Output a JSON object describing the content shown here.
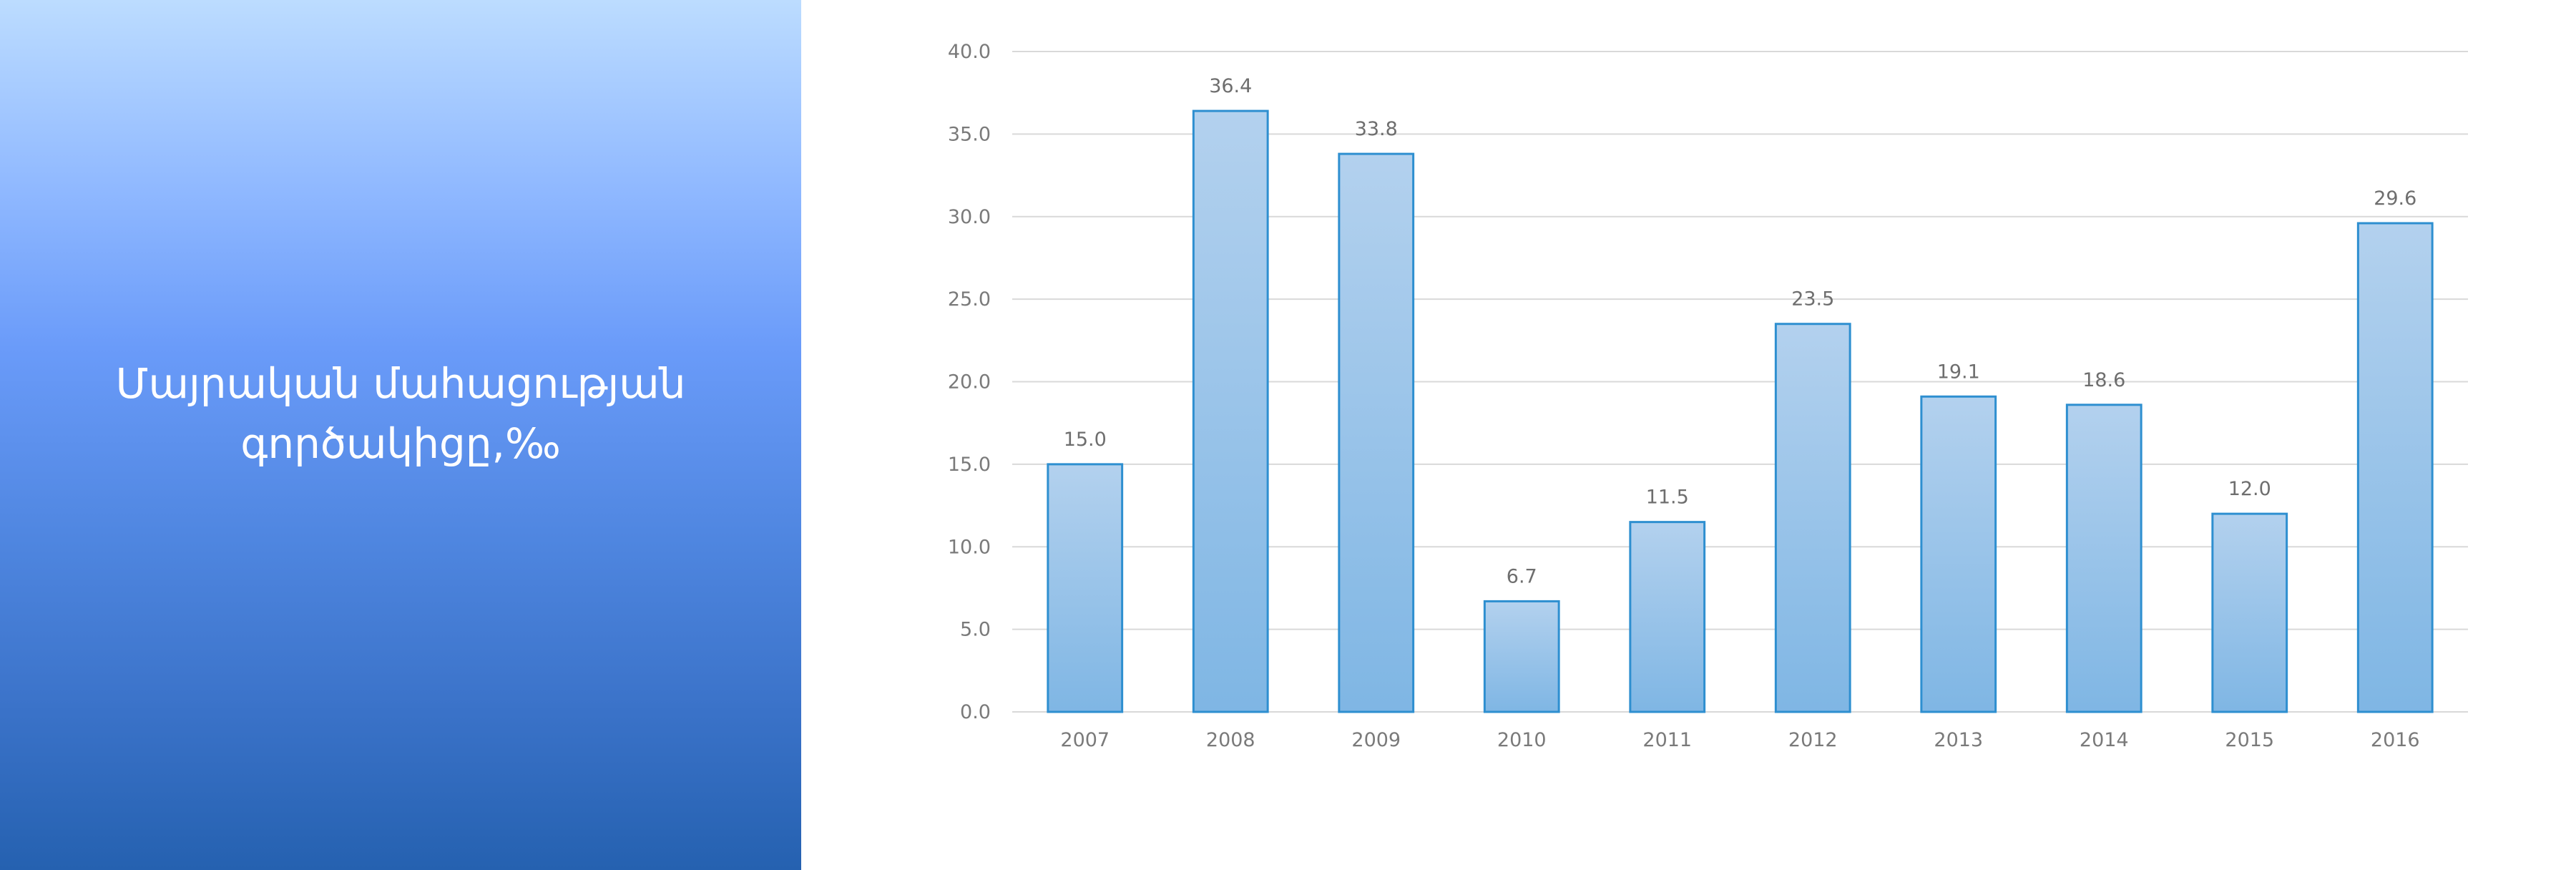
{
  "panel": {
    "title": "Մայրական մահացության գործակիցը,‰"
  },
  "colors": {
    "bar_top": "#b3d1ee",
    "bar_bottom": "#7fb6e4",
    "bar_border": "#2e8fd0",
    "grid": "#d9d9d9",
    "panel_top": "#bcdcff",
    "panel_bottom": "#2561b0"
  },
  "chart_data": {
    "type": "bar",
    "categories": [
      "2007",
      "2008",
      "2009",
      "2010",
      "2011",
      "2012",
      "2013",
      "2014",
      "2015",
      "2016"
    ],
    "values": [
      15.0,
      36.4,
      33.8,
      6.7,
      11.5,
      23.5,
      19.1,
      18.6,
      12.0,
      29.6
    ],
    "value_labels": [
      "15.0",
      "36.4",
      "33.8",
      "6.7",
      "11.5",
      "23.5",
      "19.1",
      "18.6",
      "12.0",
      "29.6"
    ],
    "ylim": [
      0,
      40
    ],
    "y_ticks": [
      "0.0",
      "5.0",
      "10.0",
      "15.0",
      "20.0",
      "25.0",
      "30.0",
      "35.0",
      "40.0"
    ],
    "grid": true,
    "legend": "none",
    "title": "",
    "xlabel": "",
    "ylabel": ""
  }
}
